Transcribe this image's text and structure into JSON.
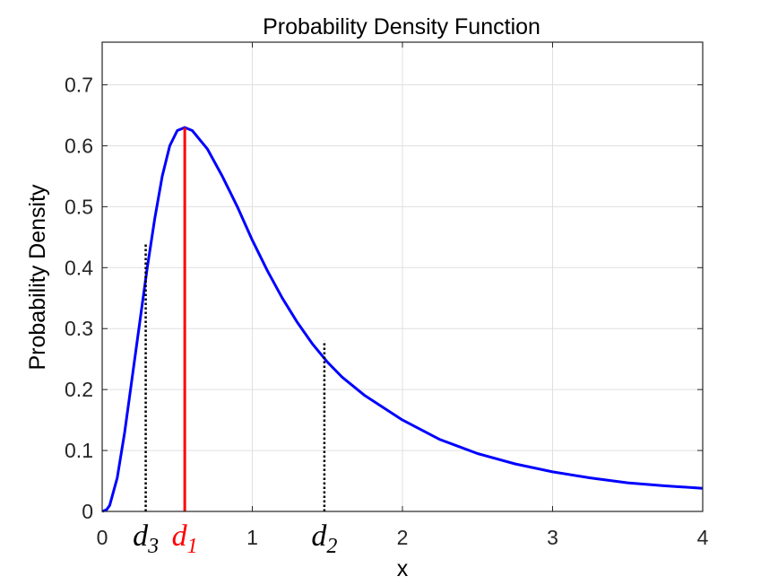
{
  "chart_data": {
    "type": "line",
    "title": "Probability Density Function",
    "xlabel": "x",
    "ylabel": "Probability Density",
    "xlim": [
      0,
      4
    ],
    "ylim": [
      0,
      0.77
    ],
    "x_ticks": [
      "0",
      "1",
      "2",
      "3",
      "4"
    ],
    "y_ticks": [
      "0",
      "0.1",
      "0.2",
      "0.3",
      "0.4",
      "0.5",
      "0.6",
      "0.7"
    ],
    "grid": true,
    "colors": {
      "curve": "#0000ff",
      "peak_line": "#ff0000",
      "marker_lines": "#000000",
      "grid": "#e0e0e0"
    },
    "series": [
      {
        "x": [
          0,
          0.03,
          0.05,
          0.1,
          0.15,
          0.2,
          0.25,
          0.3,
          0.35,
          0.4,
          0.45,
          0.5,
          0.55,
          0.6,
          0.7,
          0.8,
          0.9,
          1.0,
          1.1,
          1.2,
          1.3,
          1.4,
          1.5,
          1.6,
          1.75,
          2.0,
          2.25,
          2.5,
          2.75,
          3.0,
          3.25,
          3.5,
          3.75,
          4.0
        ],
        "y": [
          0,
          0.003,
          0.01,
          0.055,
          0.13,
          0.22,
          0.31,
          0.4,
          0.48,
          0.55,
          0.6,
          0.625,
          0.63,
          0.625,
          0.595,
          0.55,
          0.5,
          0.445,
          0.395,
          0.35,
          0.31,
          0.275,
          0.245,
          0.22,
          0.19,
          0.15,
          0.118,
          0.095,
          0.078,
          0.065,
          0.055,
          0.047,
          0.042,
          0.038
        ]
      }
    ],
    "markers": [
      {
        "base": "d",
        "sub": "3",
        "x": 0.29,
        "y": 0.44,
        "style": "dotted",
        "color": "#000000"
      },
      {
        "base": "d",
        "sub": "1",
        "x": 0.55,
        "y": 0.63,
        "style": "solid",
        "color": "#ff0000"
      },
      {
        "base": "d",
        "sub": "2",
        "x": 1.48,
        "y": 0.28,
        "style": "dotted",
        "color": "#000000"
      }
    ]
  }
}
